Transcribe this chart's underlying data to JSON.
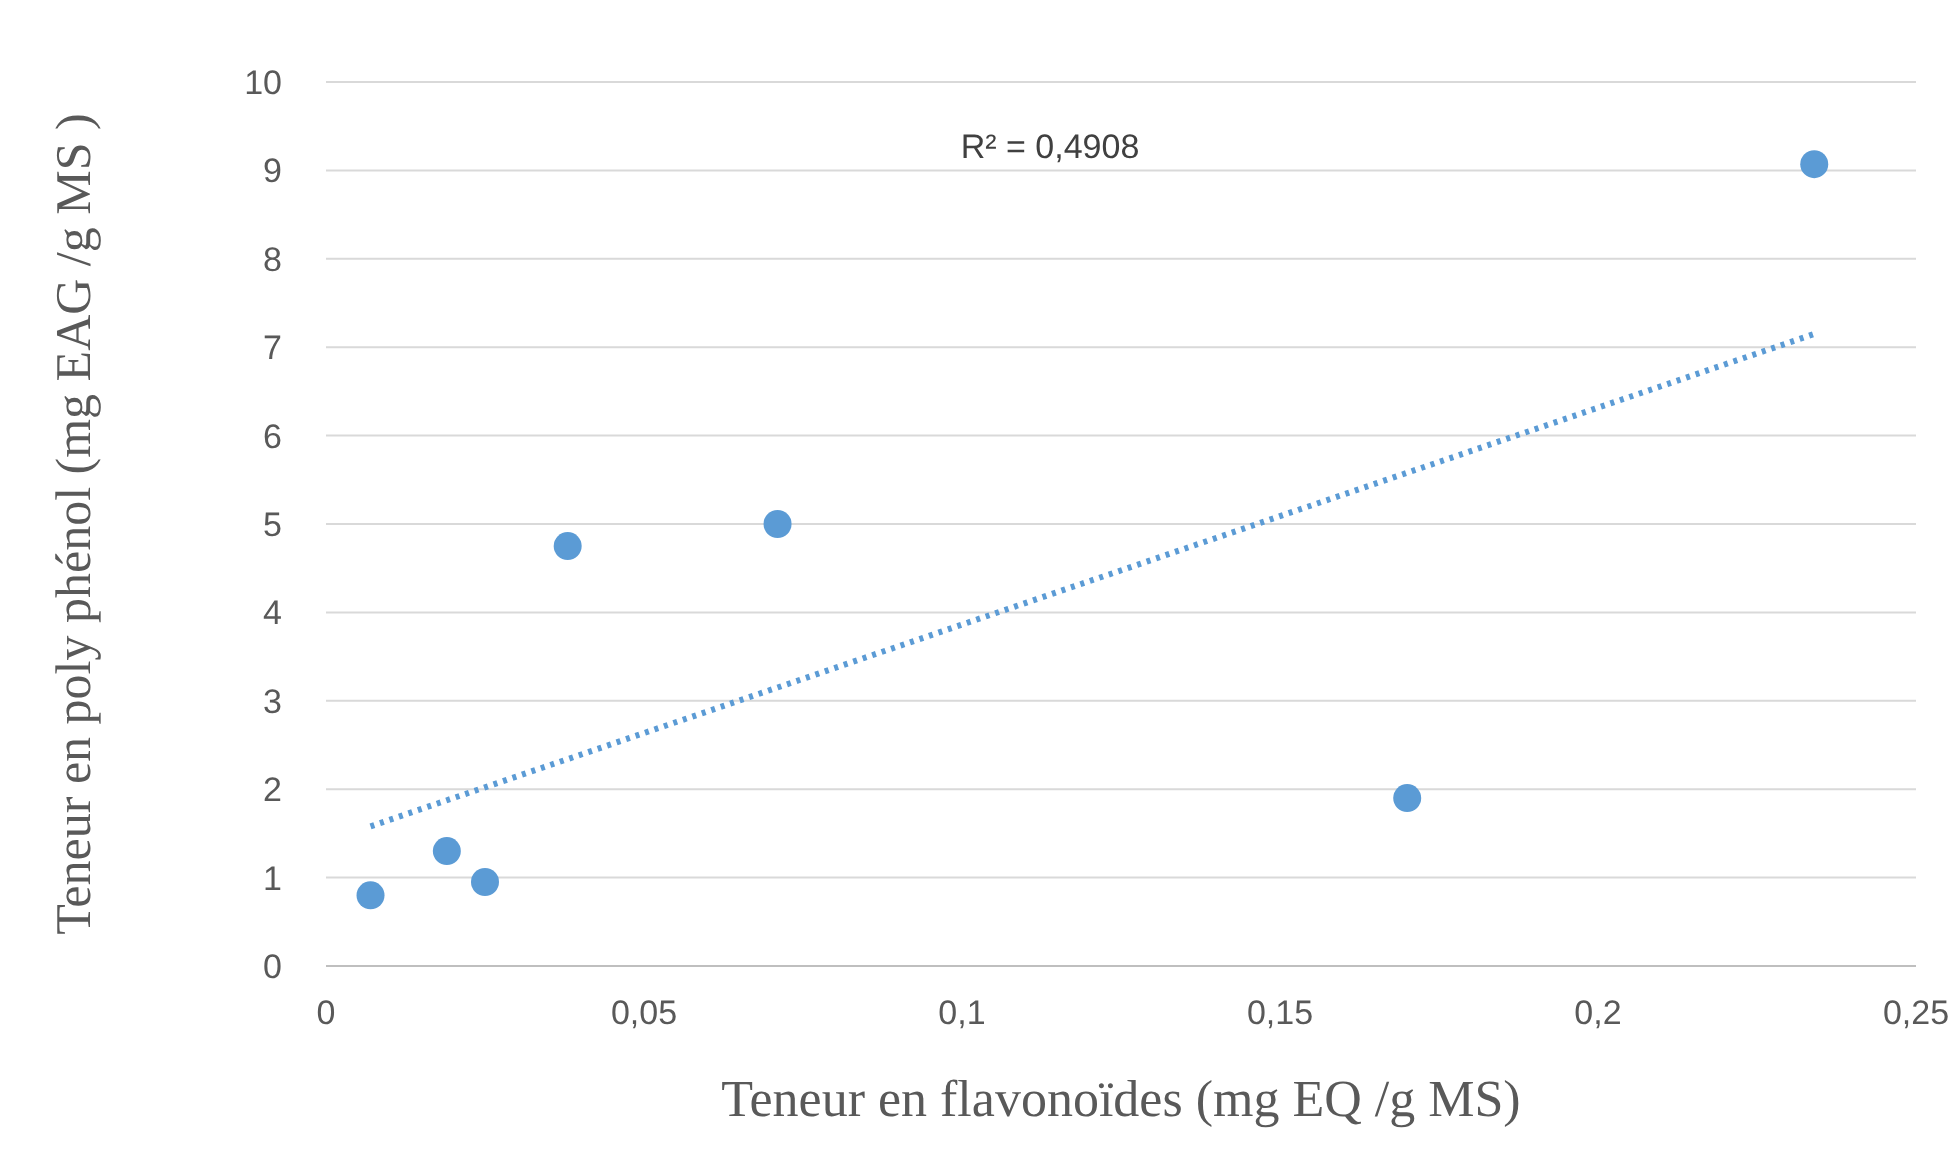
{
  "chart_data": {
    "type": "scatter",
    "xlabel": "Teneur en flavonoïdes (mg EQ /g MS)",
    "ylabel": "Teneur en poly phénol (mg EAG /g MS )",
    "annotations": [
      "R² = 0,4908"
    ],
    "xlim": [
      0,
      0.25
    ],
    "xticks": [
      0,
      {
        "value": 0.05,
        "label": "0,05"
      },
      {
        "value": 0.1,
        "label": "0,1"
      },
      {
        "value": 0.15,
        "label": "0,15"
      },
      {
        "value": 0.2,
        "label": "0,2"
      },
      {
        "value": 0.25,
        "label": "0,25"
      }
    ],
    "ylim": [
      0,
      10
    ],
    "yticks": [
      0,
      1,
      2,
      3,
      4,
      5,
      6,
      7,
      8,
      9,
      10
    ],
    "grid": "y",
    "series": [
      {
        "marker": "circle",
        "color": "#5b9bd5",
        "x": [
          0.007,
          0.019,
          0.025,
          0.038,
          0.071,
          0.17,
          0.234
        ],
        "values": [
          0.8,
          1.3,
          0.95,
          4.75,
          5.0,
          1.9,
          9.07
        ]
      },
      {
        "type": "line",
        "color": "#5b9bd5",
        "line_style": "dotted",
        "x": [
          0.007,
          0.234
        ],
        "values": [
          1.58,
          7.15
        ]
      }
    ]
  }
}
